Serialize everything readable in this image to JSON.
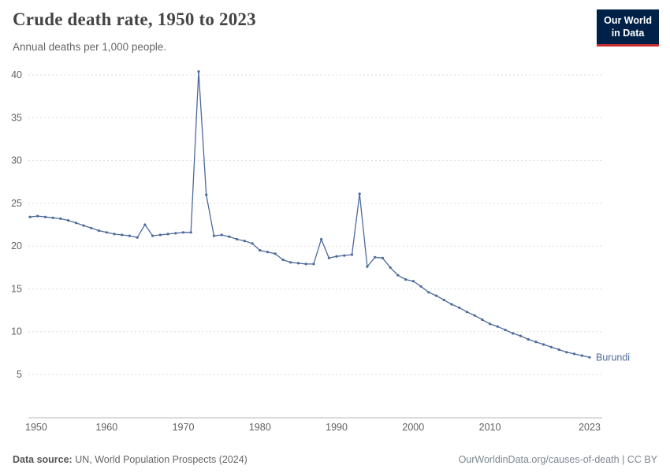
{
  "header": {
    "title": "Crude death rate, 1950 to 2023",
    "subtitle": "Annual deaths per 1,000 people."
  },
  "logo": {
    "line1": "Our World",
    "line2": "in Data"
  },
  "chart_data": {
    "type": "line",
    "title": "Crude death rate, 1950 to 2023",
    "ylabel": "Annual deaths per 1,000 people",
    "grid": true,
    "legend_position": "end-of-line",
    "ylim": [
      0,
      41
    ],
    "y_ticks": [
      5,
      10,
      15,
      20,
      25,
      30,
      35,
      40
    ],
    "x_ticks": [
      1950,
      1960,
      1970,
      1980,
      1990,
      2000,
      2010,
      2023
    ],
    "years": [
      1950,
      1951,
      1952,
      1953,
      1954,
      1955,
      1956,
      1957,
      1958,
      1959,
      1960,
      1961,
      1962,
      1963,
      1964,
      1965,
      1966,
      1967,
      1968,
      1969,
      1970,
      1971,
      1972,
      1973,
      1974,
      1975,
      1976,
      1977,
      1978,
      1979,
      1980,
      1981,
      1982,
      1983,
      1984,
      1985,
      1986,
      1987,
      1988,
      1989,
      1990,
      1991,
      1992,
      1993,
      1994,
      1995,
      1996,
      1997,
      1998,
      1999,
      2000,
      2001,
      2002,
      2003,
      2004,
      2005,
      2006,
      2007,
      2008,
      2009,
      2010,
      2011,
      2012,
      2013,
      2014,
      2015,
      2016,
      2017,
      2018,
      2019,
      2020,
      2021,
      2022,
      2023
    ],
    "series": [
      {
        "name": "Burundi",
        "color": "#4c6a9c",
        "values": [
          23.4,
          23.5,
          23.4,
          23.3,
          23.2,
          23.0,
          22.7,
          22.4,
          22.1,
          21.8,
          21.6,
          21.4,
          21.3,
          21.2,
          21.0,
          22.5,
          21.2,
          21.3,
          21.4,
          21.5,
          21.6,
          21.6,
          40.4,
          26.0,
          21.2,
          21.3,
          21.1,
          20.8,
          20.6,
          20.3,
          19.5,
          19.3,
          19.1,
          18.4,
          18.1,
          18.0,
          17.9,
          17.9,
          20.8,
          18.6,
          18.8,
          18.9,
          19.0,
          26.1,
          17.6,
          18.7,
          18.6,
          17.5,
          16.6,
          16.1,
          15.9,
          15.3,
          14.6,
          14.2,
          13.7,
          13.2,
          12.8,
          12.3,
          11.9,
          11.4,
          10.9,
          10.6,
          10.2,
          9.8,
          9.5,
          9.1,
          8.8,
          8.5,
          8.2,
          7.9,
          7.6,
          7.4,
          7.2,
          7.0
        ]
      }
    ]
  },
  "footer": {
    "source_label": "Data source:",
    "source_text": " UN, World Population Prospects (2024)",
    "credit": "OurWorldinData.org/causes-of-death | CC BY"
  },
  "colors": {
    "line": "#4c6a9c",
    "grid": "#dcdcdc",
    "axis": "#b8b8b8",
    "tick_text": "#606060",
    "logo_bg": "#002147",
    "logo_accent": "#cb2d2d"
  }
}
